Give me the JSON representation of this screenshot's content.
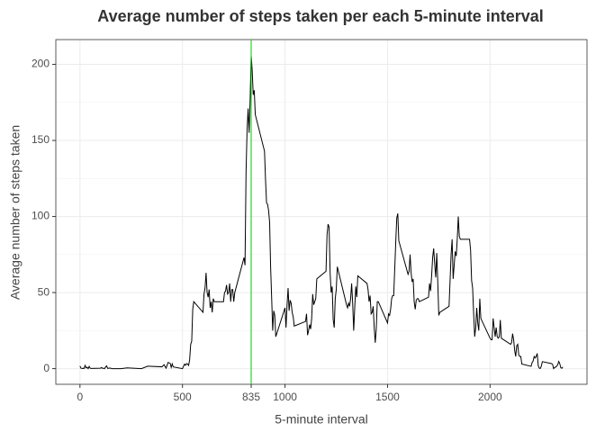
{
  "chart_data": {
    "type": "line",
    "title": "Average number of steps taken per each 5-minute interval",
    "x_label": "5-minute interval",
    "y_label": "Average number of steps taken",
    "x": [
      0,
      5,
      10,
      15,
      20,
      25,
      30,
      35,
      40,
      45,
      50,
      55,
      100,
      105,
      110,
      115,
      120,
      125,
      130,
      135,
      140,
      145,
      150,
      155,
      200,
      230,
      300,
      330,
      400,
      410,
      420,
      430,
      440,
      445,
      450,
      455,
      500,
      505,
      510,
      515,
      520,
      525,
      530,
      535,
      540,
      545,
      550,
      555,
      600,
      605,
      610,
      615,
      620,
      625,
      630,
      635,
      640,
      645,
      650,
      655,
      700,
      705,
      710,
      715,
      720,
      725,
      730,
      735,
      740,
      745,
      750,
      755,
      800,
      805,
      810,
      815,
      820,
      825,
      830,
      835,
      840,
      845,
      850,
      855,
      900,
      905,
      910,
      915,
      920,
      925,
      930,
      935,
      940,
      945,
      950,
      955,
      1000,
      1005,
      1010,
      1015,
      1020,
      1025,
      1030,
      1035,
      1040,
      1045,
      1100,
      1105,
      1110,
      1115,
      1120,
      1125,
      1130,
      1135,
      1140,
      1145,
      1150,
      1155,
      1200,
      1205,
      1210,
      1215,
      1220,
      1225,
      1230,
      1235,
      1240,
      1245,
      1250,
      1255,
      1300,
      1305,
      1310,
      1315,
      1320,
      1325,
      1330,
      1335,
      1340,
      1345,
      1350,
      1355,
      1400,
      1405,
      1410,
      1415,
      1420,
      1425,
      1430,
      1435,
      1440,
      1445,
      1450,
      1455,
      1500,
      1505,
      1510,
      1515,
      1520,
      1525,
      1530,
      1535,
      1540,
      1545,
      1550,
      1555,
      1600,
      1605,
      1610,
      1615,
      1620,
      1625,
      1630,
      1635,
      1640,
      1645,
      1650,
      1655,
      1700,
      1705,
      1710,
      1715,
      1720,
      1725,
      1730,
      1735,
      1740,
      1745,
      1750,
      1755,
      1800,
      1805,
      1810,
      1815,
      1820,
      1825,
      1830,
      1835,
      1840,
      1845,
      1850,
      1855,
      1900,
      1905,
      1910,
      1915,
      1920,
      1925,
      1930,
      1935,
      1940,
      1945,
      1950,
      1955,
      2000,
      2005,
      2010,
      2015,
      2020,
      2025,
      2030,
      2035,
      2040,
      2045,
      2050,
      2055,
      2100,
      2105,
      2110,
      2115,
      2120,
      2125,
      2130,
      2135,
      2140,
      2145,
      2150,
      2155,
      2200,
      2205,
      2210,
      2215,
      2220,
      2225,
      2230,
      2235,
      2240,
      2245,
      2250,
      2255,
      2300,
      2305,
      2310,
      2315,
      2320,
      2325,
      2330,
      2335,
      2340,
      2345,
      2350,
      2355
    ],
    "values": [
      1.7,
      0.3,
      0.1,
      0.2,
      0.1,
      2.1,
      0.5,
      0.9,
      0,
      1.5,
      0.3,
      0.1,
      0.3,
      0.7,
      0.2,
      0.3,
      0,
      1.1,
      1.8,
      0.2,
      0.2,
      0.4,
      0.3,
      0,
      0,
      0.5,
      0,
      1.6,
      1.2,
      2.6,
      0.3,
      4.1,
      3.5,
      0.8,
      3.1,
      1.1,
      0,
      1.5,
      3,
      2.2,
      3.3,
      3,
      2.1,
      6,
      16,
      18,
      39,
      44,
      37,
      49,
      53,
      63,
      50,
      47,
      52,
      40,
      44,
      37,
      46,
      44,
      44,
      50,
      51,
      55,
      49,
      50,
      56,
      44,
      52,
      52,
      44,
      50,
      73,
      68,
      129,
      157,
      171,
      155,
      177,
      206,
      196,
      180,
      183,
      167,
      143,
      124,
      109,
      108,
      104,
      96,
      66,
      46,
      25,
      38,
      35,
      21,
      40,
      27,
      42,
      53,
      38,
      45,
      43,
      37,
      34,
      28,
      31,
      36,
      22,
      25,
      29,
      26,
      33,
      49,
      42,
      44,
      46,
      59,
      64,
      88,
      95,
      93,
      63,
      50,
      54,
      32,
      27,
      46,
      52,
      67,
      42,
      40,
      43,
      41,
      46,
      56,
      43,
      25,
      40,
      54,
      47,
      61,
      56,
      52,
      44,
      48,
      36,
      37,
      41,
      27,
      17,
      26,
      44,
      44,
      30,
      36,
      35,
      39,
      46,
      48,
      48,
      65,
      83,
      99,
      102,
      84,
      62,
      64,
      75,
      63,
      57,
      59,
      44,
      39,
      45,
      46,
      46,
      44,
      47,
      56,
      51,
      61,
      73,
      79,
      69,
      60,
      76,
      57,
      35,
      37,
      41,
      58,
      75,
      85,
      59,
      68,
      77,
      74,
      85,
      100,
      87,
      85,
      85,
      78,
      58,
      53,
      36,
      21,
      27,
      40,
      30,
      25,
      46,
      33,
      20,
      19,
      19,
      33,
      27,
      21,
      27,
      21,
      20,
      21,
      32,
      20,
      16,
      17,
      23,
      19,
      12,
      8,
      15,
      16,
      9,
      8,
      8,
      3,
      1.5,
      4,
      5,
      8,
      7,
      8,
      10,
      2,
      0.3,
      0.1,
      1.6,
      4.6,
      3.3,
      2.8,
      0,
      0.8,
      1,
      1.6,
      2.6,
      4.7,
      3.3,
      0.6,
      0.2,
      1.1
    ],
    "color": "#000000",
    "vline": 835,
    "vline_color": "#00cc00",
    "xlim": [
      -117.75,
      2472.75
    ],
    "xticks": [
      0,
      500,
      835,
      1000,
      1500,
      2000
    ],
    "ylim": [
      -10.3,
      216.3
    ],
    "yticks": [
      0,
      50,
      100,
      150,
      200
    ],
    "grid": true
  }
}
